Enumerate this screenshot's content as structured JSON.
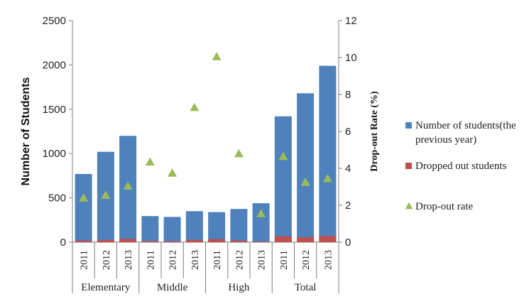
{
  "chart_data": {
    "type": "bar",
    "title": "",
    "ylabel": "Number of Students",
    "y2label": "Drop-out Rate (%)",
    "ylim": [
      0,
      2500
    ],
    "y2lim": [
      0,
      12
    ],
    "yticks": [
      "0",
      "500",
      "1000",
      "1500",
      "2000",
      "2500"
    ],
    "y2ticks": [
      "0",
      "2",
      "4",
      "6",
      "8",
      "10",
      "12"
    ],
    "categories": [
      "2011",
      "2012",
      "2013",
      "2011",
      "2012",
      "2013",
      "2011",
      "2012",
      "2013",
      "2011",
      "2012",
      "2013"
    ],
    "groups": [
      "Elementary",
      "Middle",
      "High",
      "Total"
    ],
    "series": [
      {
        "name": "Number of students(the previous year)",
        "legend_lines": [
          "Number of students(the",
          "previous year)"
        ],
        "kind": "bar",
        "color": "#4F81BD",
        "values": [
          770,
          1020,
          1200,
          295,
          285,
          350,
          340,
          375,
          440,
          1420,
          1680,
          1990
        ]
      },
      {
        "name": "Dropped out students",
        "legend_lines": [
          "Dropped out students"
        ],
        "kind": "bar",
        "color": "#C0504D",
        "values": [
          18,
          26,
          37,
          13,
          11,
          26,
          34,
          18,
          7,
          66,
          55,
          70
        ]
      },
      {
        "name": "Drop-out rate",
        "legend_lines": [
          "Drop-out rate"
        ],
        "kind": "marker",
        "axis": "right",
        "color": "#9BBB59",
        "values": [
          2.4,
          2.55,
          3.05,
          4.35,
          3.75,
          7.3,
          10.05,
          4.8,
          1.55,
          4.65,
          3.25,
          3.45
        ]
      }
    ],
    "legend_position": "right",
    "grid": false
  }
}
